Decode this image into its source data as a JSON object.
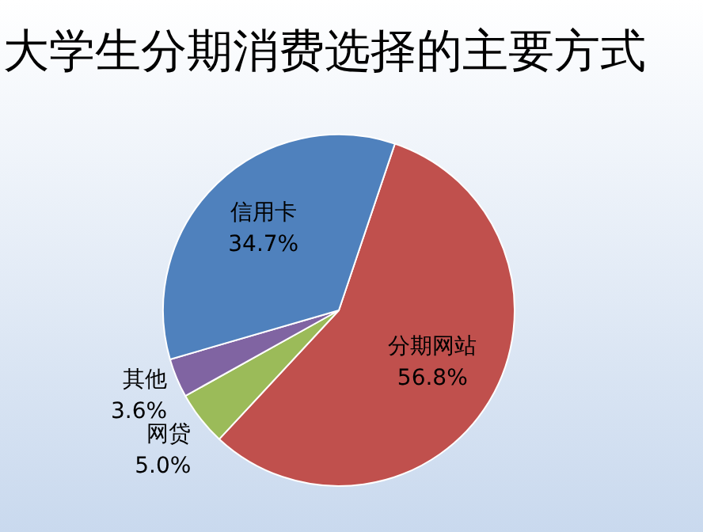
{
  "chart_data": {
    "type": "pie",
    "title": "大学生分期消费选择的主要方式",
    "categories": [
      "分期网站",
      "网贷",
      "其他",
      "信用卡"
    ],
    "values": [
      56.8,
      5.0,
      3.6,
      34.7
    ],
    "colors": [
      "#c0504d",
      "#9bbb59",
      "#8064a2",
      "#4f81bd"
    ],
    "value_labels": [
      "56.8%",
      "5.0%",
      "3.6%",
      "34.7%"
    ]
  }
}
